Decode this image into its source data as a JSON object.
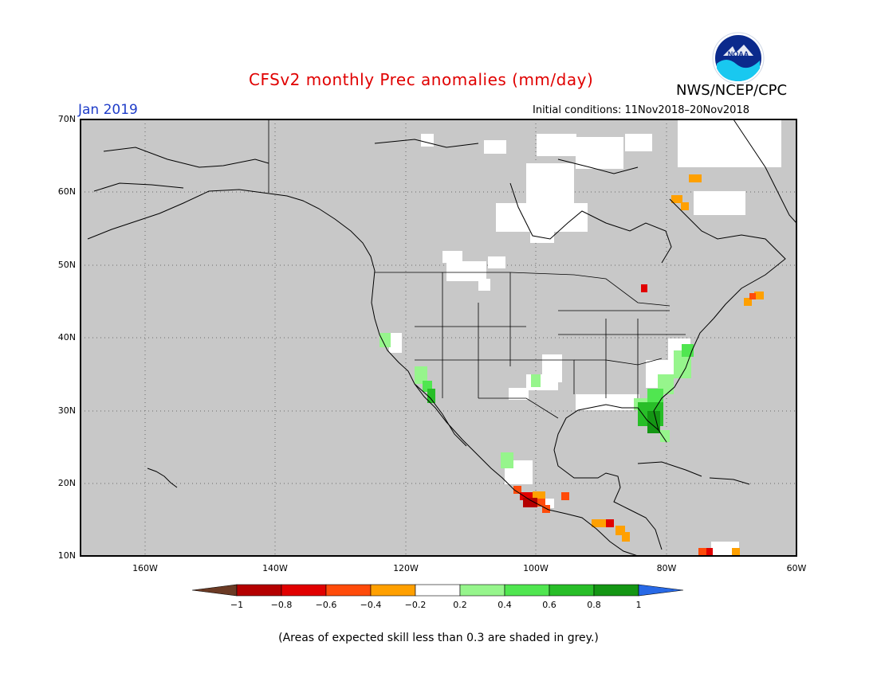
{
  "title": "CFSv2 monthly Prec anomalies (mm/day)",
  "agency": "NWS/NCEP/CPC",
  "logo_text": "NOAA",
  "forecast_month": "Jan 2019",
  "initial_conditions": "Initial conditions: 11Nov2018–20Nov2018",
  "lat_labels": [
    "70N",
    "60N",
    "50N",
    "40N",
    "30N",
    "20N",
    "10N"
  ],
  "lon_labels": [
    "160W",
    "140W",
    "120W",
    "100W",
    "80W",
    "60W"
  ],
  "legend": {
    "labels": [
      "−1",
      "−0.8",
      "−0.6",
      "−0.4",
      "−0.2",
      "0.2",
      "0.4",
      "0.6",
      "0.8",
      "1"
    ],
    "colors": [
      "#6b3a24",
      "#b40000",
      "#e10000",
      "#ff4b0a",
      "#ffa000",
      "#ffffff",
      "#96f58c",
      "#50e650",
      "#28be28",
      "#149614",
      "#2869e6"
    ]
  },
  "footnote": "(Areas of expected skill less than 0.3 are shaded in grey.)",
  "colors": {
    "grey_skill_mask": "#c8c8c8",
    "title": "#e00000",
    "month": "#1e3cc8"
  }
}
